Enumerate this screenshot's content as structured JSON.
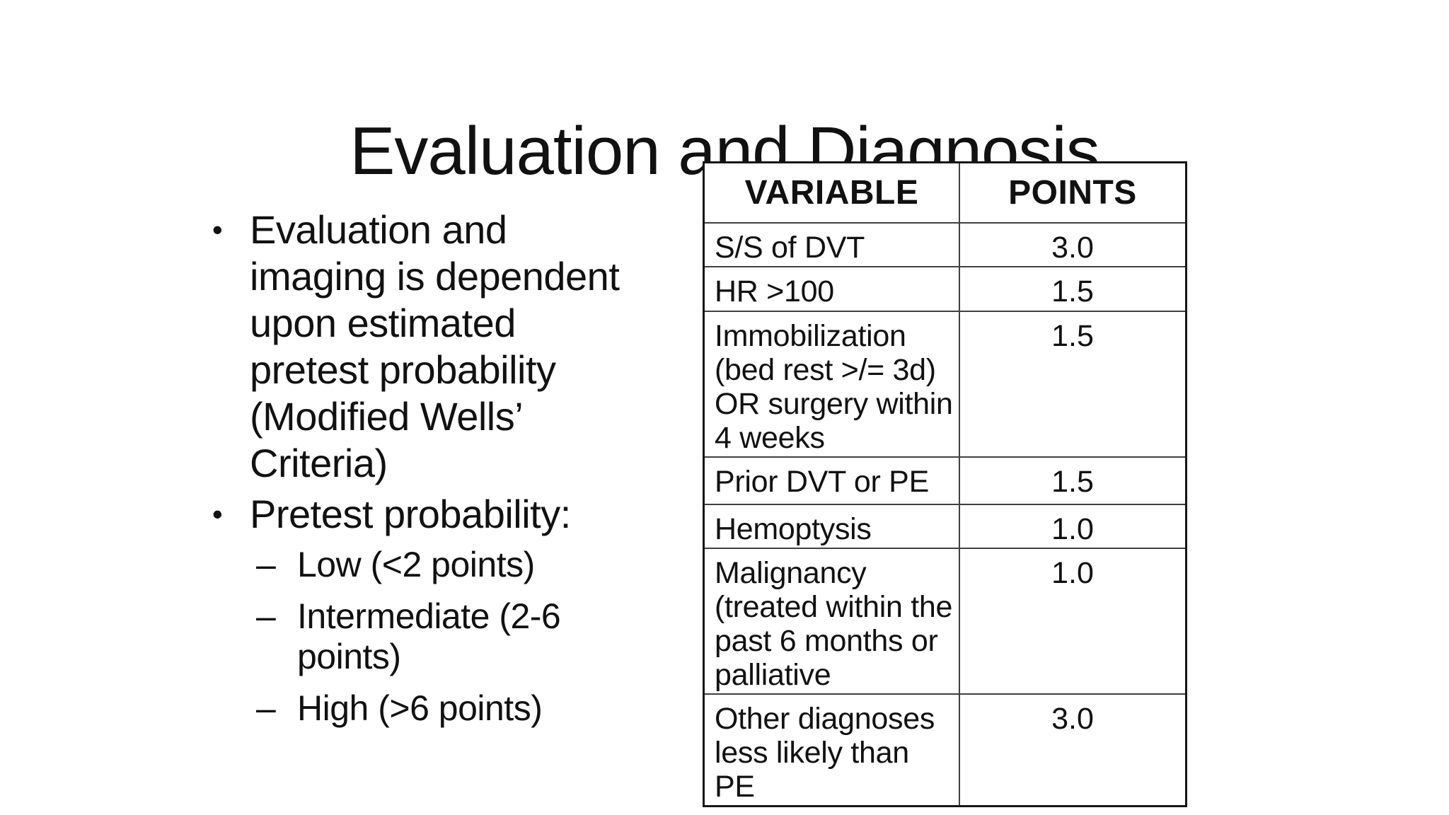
{
  "colors": {
    "background": "#ffffff",
    "text": "#111111",
    "table_border_outer": "#161616",
    "table_border_inner": "#404040"
  },
  "markers": {
    "bullet": "•",
    "dash": "–"
  },
  "slide": {
    "title": "Evaluation and Diagnosis"
  },
  "bullets": [
    {
      "text": "Evaluation and\nimaging is dependent\nupon estimated\npretest probability\n(Modified Wells’\nCriteria)"
    },
    {
      "text": "Pretest probability:",
      "sub": [
        "Low (<2 points)",
        "Intermediate (2-6\npoints)",
        "High (>6 points)"
      ]
    }
  ],
  "table": {
    "headers": [
      "VARIABLE",
      "POINTS"
    ],
    "rows": [
      {
        "variable": "S/S of DVT",
        "points": "3.0"
      },
      {
        "variable": "HR >100",
        "points": "1.5"
      },
      {
        "variable": "Immobilization\n(bed rest >/= 3d)\nOR surgery within\n4 weeks",
        "points": "1.5"
      },
      {
        "variable": "Prior DVT or PE",
        "points": "1.5"
      },
      {
        "variable": "Hemoptysis",
        "points": "1.0"
      },
      {
        "variable": "Malignancy\n(treated within the\npast 6 months or\npalliative",
        "points": "1.0"
      },
      {
        "variable": "Other diagnoses\nless likely than PE",
        "points": "3.0"
      }
    ]
  }
}
